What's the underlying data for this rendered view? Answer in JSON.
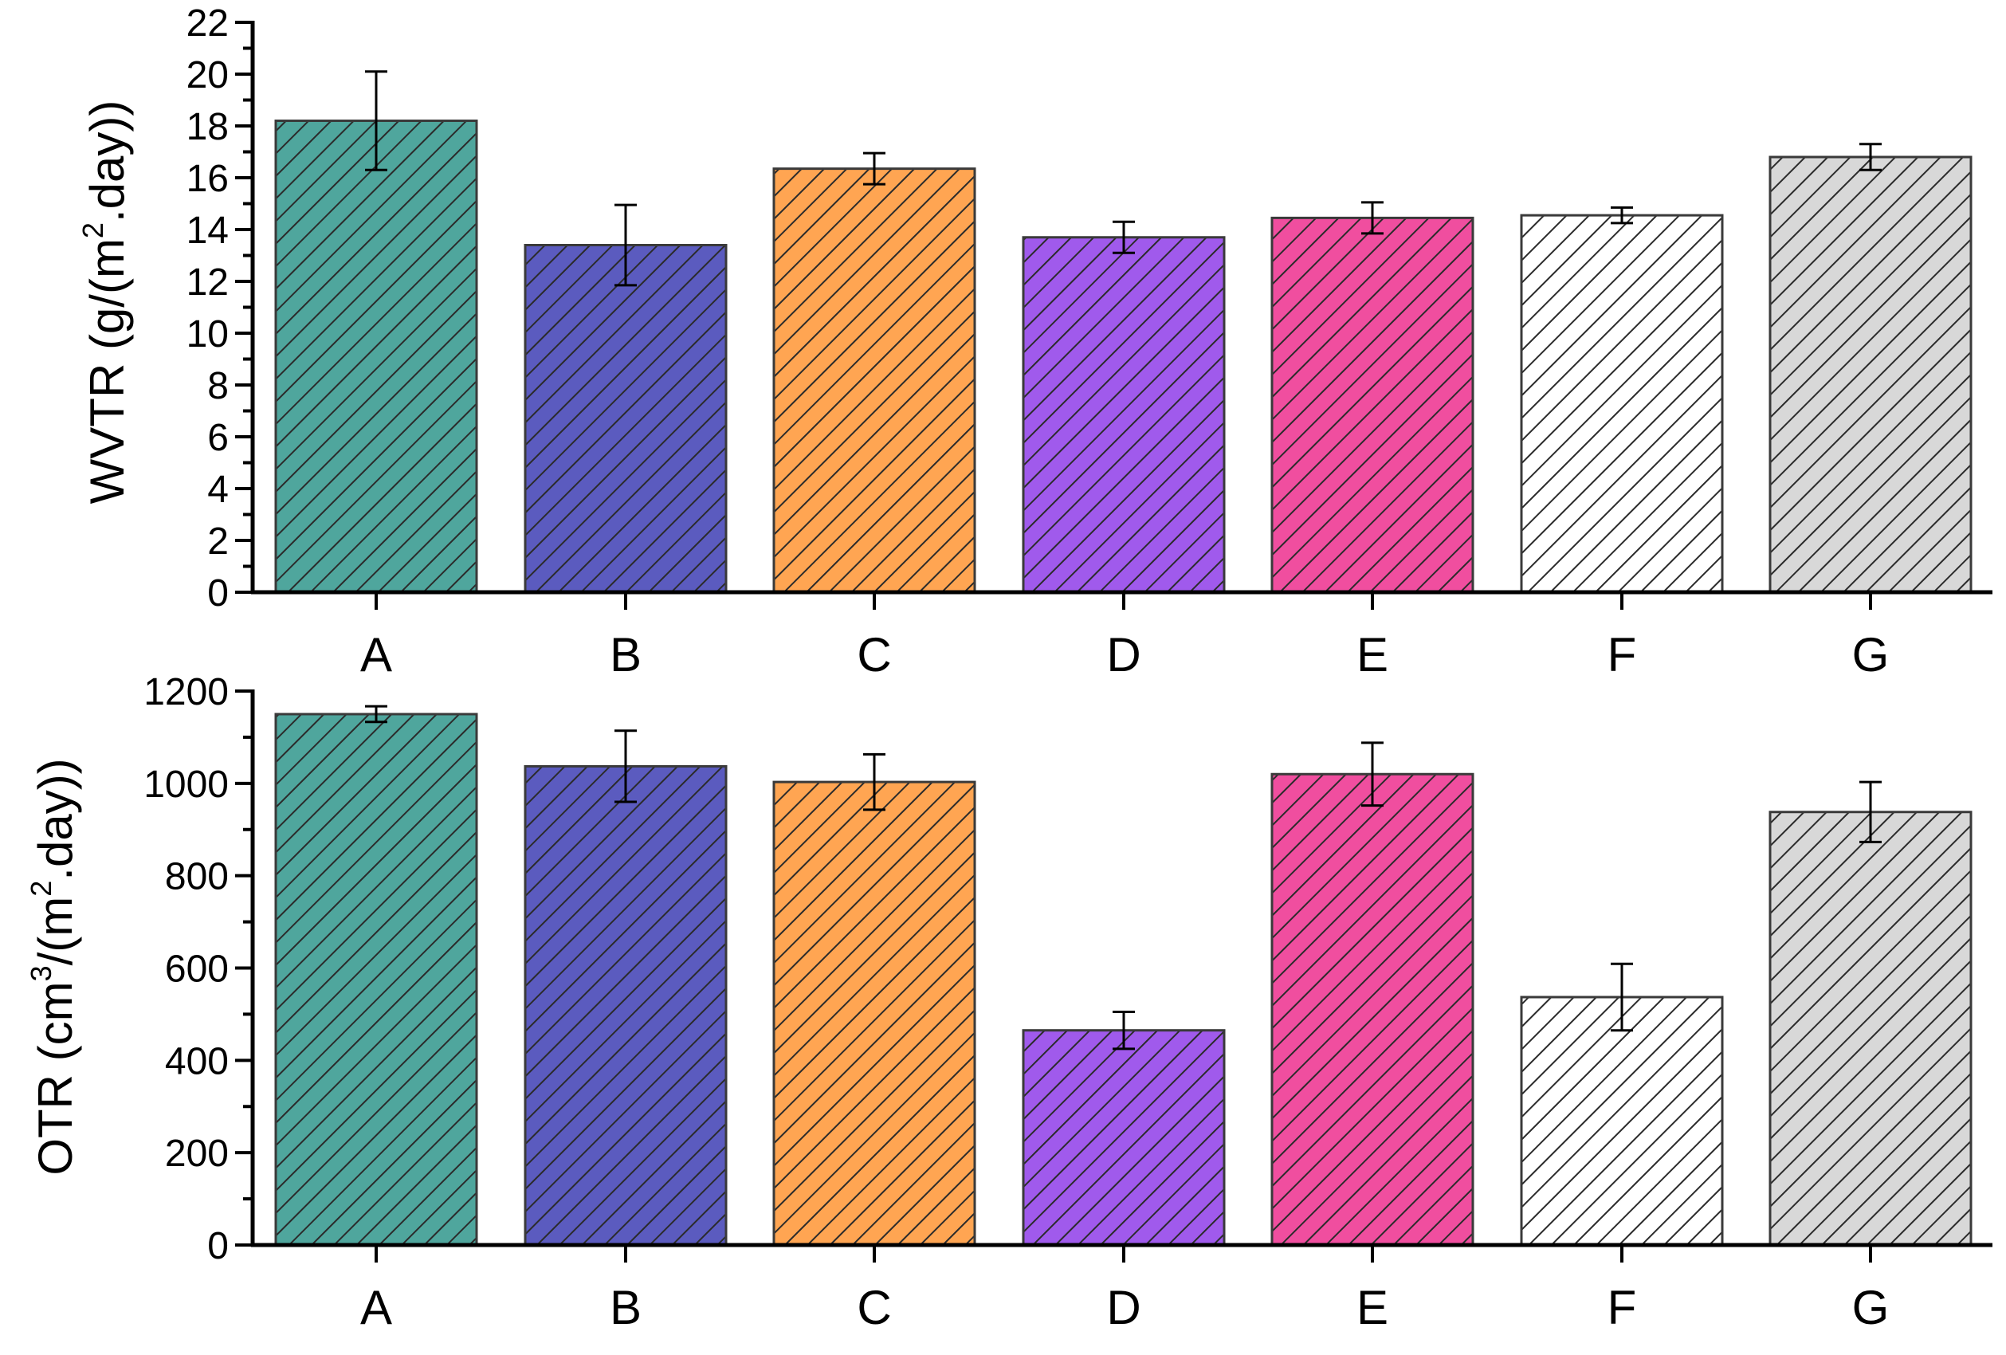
{
  "chart_data": [
    {
      "type": "bar",
      "categories": [
        "A",
        "B",
        "C",
        "D",
        "E",
        "F",
        "G"
      ],
      "values": [
        18.2,
        13.4,
        16.35,
        13.7,
        14.45,
        14.55,
        16.8
      ],
      "errors": [
        1.9,
        1.55,
        0.6,
        0.6,
        0.6,
        0.3,
        0.5
      ],
      "ylabel": {
        "pre": "WVTR (g/(m",
        "sup": "2",
        "post": ".day))"
      },
      "ylim": [
        0,
        22
      ],
      "yticks": [
        0,
        2,
        4,
        6,
        8,
        10,
        12,
        14,
        16,
        18,
        20,
        22
      ],
      "ytick_labels": [
        "0",
        "2",
        "4",
        "6",
        "8",
        "10",
        "12",
        "14",
        "16",
        "18",
        "20",
        "22"
      ],
      "grid": false,
      "colors": [
        "#4fa69d",
        "#5b5bbf",
        "#ffa552",
        "#a05aec",
        "#f04e9f",
        "#ffffff",
        "#d8d8d8"
      ],
      "hatch": "diagonal"
    },
    {
      "type": "bar",
      "categories": [
        "A",
        "B",
        "C",
        "D",
        "E",
        "F",
        "G"
      ],
      "values": [
        1150,
        1037,
        1003,
        465,
        1020,
        537,
        938
      ],
      "errors": [
        17,
        77,
        60,
        40,
        68,
        72,
        65
      ],
      "ylabel": {
        "pre": "OTR (cm",
        "sup": "3",
        "post": "/(m",
        "sup2": "2",
        "post2": ".day))"
      },
      "ylim": [
        0,
        1200
      ],
      "yticks": [
        0,
        200,
        400,
        600,
        800,
        1000,
        1200
      ],
      "ytick_labels": [
        "0",
        "200",
        "400",
        "600",
        "800",
        "1000",
        "1200"
      ],
      "grid": false,
      "colors": [
        "#4fa69d",
        "#5b5bbf",
        "#ffa552",
        "#a05aec",
        "#f04e9f",
        "#ffffff",
        "#d8d8d8"
      ],
      "hatch": "diagonal"
    }
  ]
}
